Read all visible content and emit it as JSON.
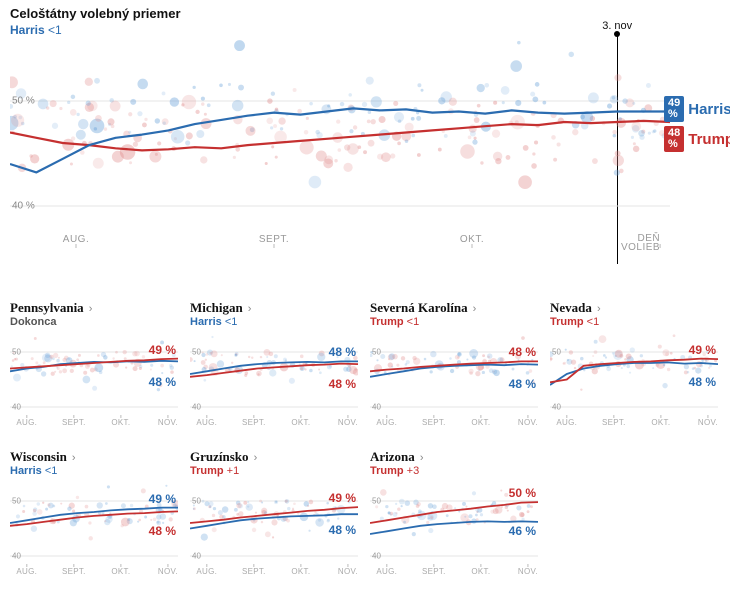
{
  "colors": {
    "harris": "#2b6cb0",
    "trump": "#c53030",
    "harris_dot": "#6aa2d8",
    "trump_dot": "#e08a8a",
    "grid": "#e5e5e5",
    "axis": "#bbbbbb",
    "text": "#111111",
    "muted": "#999999",
    "bg": "#ffffff"
  },
  "main": {
    "title": "Celoštátny volebný priemer",
    "leader": "Harris",
    "margin": "<1",
    "date_label": "3. nov",
    "x_ticks": [
      "AUG.",
      "SEPT.",
      "OKT.",
      "DEŇ VOLIEB"
    ],
    "x_tick_pos": [
      0.1,
      0.4,
      0.7,
      0.985
    ],
    "y_ticks": [
      40,
      50
    ],
    "y_domain": [
      36,
      56
    ],
    "rule_pos": 0.92,
    "end_harris": "49 %",
    "end_trump": "48 %",
    "harris_line": [
      [
        0.0,
        44.0
      ],
      [
        0.04,
        43.2
      ],
      [
        0.08,
        44.5
      ],
      [
        0.12,
        45.8
      ],
      [
        0.16,
        46.5
      ],
      [
        0.2,
        46.8
      ],
      [
        0.24,
        47.2
      ],
      [
        0.28,
        47.8
      ],
      [
        0.32,
        48.2
      ],
      [
        0.36,
        48.6
      ],
      [
        0.4,
        48.9
      ],
      [
        0.44,
        48.7
      ],
      [
        0.48,
        49.0
      ],
      [
        0.52,
        49.3
      ],
      [
        0.56,
        49.1
      ],
      [
        0.6,
        49.2
      ],
      [
        0.64,
        48.9
      ],
      [
        0.68,
        49.0
      ],
      [
        0.72,
        48.8
      ],
      [
        0.76,
        49.1
      ],
      [
        0.8,
        48.9
      ],
      [
        0.84,
        48.8
      ],
      [
        0.88,
        48.9
      ],
      [
        0.92,
        49.0
      ],
      [
        0.96,
        49.0
      ],
      [
        1.0,
        49.0
      ]
    ],
    "trump_line": [
      [
        0.0,
        47.0
      ],
      [
        0.04,
        46.5
      ],
      [
        0.08,
        46.0
      ],
      [
        0.12,
        45.8
      ],
      [
        0.16,
        45.5
      ],
      [
        0.2,
        45.3
      ],
      [
        0.24,
        45.4
      ],
      [
        0.28,
        45.6
      ],
      [
        0.32,
        45.5
      ],
      [
        0.36,
        45.8
      ],
      [
        0.4,
        46.0
      ],
      [
        0.44,
        46.2
      ],
      [
        0.48,
        46.4
      ],
      [
        0.52,
        46.6
      ],
      [
        0.56,
        46.8
      ],
      [
        0.6,
        47.0
      ],
      [
        0.64,
        47.2
      ],
      [
        0.68,
        47.4
      ],
      [
        0.72,
        47.6
      ],
      [
        0.76,
        47.8
      ],
      [
        0.8,
        47.7
      ],
      [
        0.84,
        48.0
      ],
      [
        0.88,
        47.9
      ],
      [
        0.92,
        48.0
      ],
      [
        0.96,
        48.1
      ],
      [
        1.0,
        48.0
      ]
    ],
    "n_dots": 260,
    "dot_seed": 7
  },
  "panels_common": {
    "x_ticks": [
      "AUG.",
      "SEPT.",
      "OKT.",
      "NOV."
    ],
    "x_tick_pos": [
      0.1,
      0.38,
      0.66,
      0.94
    ],
    "y_ticks": [
      40,
      50
    ],
    "y_domain": [
      38,
      54
    ]
  },
  "panels": [
    {
      "title": "Pennsylvania",
      "leader": "Dokonca",
      "leader_color": "#555555",
      "margin": "",
      "end_top": "49 %",
      "end_top_color": "trump",
      "end_bot": "48 %",
      "end_bot_color": "harris",
      "harris_line": [
        [
          0,
          46.5
        ],
        [
          0.1,
          47.0
        ],
        [
          0.2,
          47.3
        ],
        [
          0.3,
          47.8
        ],
        [
          0.4,
          48.0
        ],
        [
          0.5,
          48.2
        ],
        [
          0.6,
          48.1
        ],
        [
          0.7,
          48.3
        ],
        [
          0.8,
          48.2
        ],
        [
          0.9,
          48.4
        ],
        [
          1,
          48.3
        ]
      ],
      "trump_line": [
        [
          0,
          47.0
        ],
        [
          0.1,
          47.2
        ],
        [
          0.2,
          47.4
        ],
        [
          0.3,
          47.6
        ],
        [
          0.4,
          47.8
        ],
        [
          0.5,
          48.0
        ],
        [
          0.6,
          48.2
        ],
        [
          0.7,
          48.4
        ],
        [
          0.8,
          48.5
        ],
        [
          0.9,
          48.7
        ],
        [
          1,
          48.8
        ]
      ]
    },
    {
      "title": "Michigan",
      "leader": "Harris",
      "leader_color": "harris",
      "margin": "<1",
      "end_top": "48 %",
      "end_top_color": "harris",
      "end_bot": "48 %",
      "end_bot_color": "trump",
      "harris_line": [
        [
          0,
          46.0
        ],
        [
          0.1,
          46.5
        ],
        [
          0.2,
          47.0
        ],
        [
          0.3,
          47.5
        ],
        [
          0.4,
          47.8
        ],
        [
          0.5,
          48.0
        ],
        [
          0.6,
          48.1
        ],
        [
          0.7,
          48.2
        ],
        [
          0.8,
          48.1
        ],
        [
          0.9,
          48.3
        ],
        [
          1,
          48.3
        ]
      ],
      "trump_line": [
        [
          0,
          45.5
        ],
        [
          0.1,
          45.8
        ],
        [
          0.2,
          46.2
        ],
        [
          0.3,
          46.6
        ],
        [
          0.4,
          47.0
        ],
        [
          0.5,
          47.2
        ],
        [
          0.6,
          47.4
        ],
        [
          0.7,
          47.6
        ],
        [
          0.8,
          47.7
        ],
        [
          0.9,
          47.9
        ],
        [
          1,
          47.8
        ]
      ]
    },
    {
      "title": "Severná Karolína",
      "leader": "Trump",
      "leader_color": "trump",
      "margin": "<1",
      "end_top": "48 %",
      "end_top_color": "trump",
      "end_bot": "48 %",
      "end_bot_color": "harris",
      "harris_line": [
        [
          0,
          45.5
        ],
        [
          0.1,
          46.0
        ],
        [
          0.2,
          46.5
        ],
        [
          0.3,
          47.0
        ],
        [
          0.4,
          47.3
        ],
        [
          0.5,
          47.5
        ],
        [
          0.6,
          47.6
        ],
        [
          0.7,
          47.7
        ],
        [
          0.8,
          47.6
        ],
        [
          0.9,
          47.8
        ],
        [
          1,
          47.7
        ]
      ],
      "trump_line": [
        [
          0,
          46.5
        ],
        [
          0.1,
          46.8
        ],
        [
          0.2,
          47.0
        ],
        [
          0.3,
          47.3
        ],
        [
          0.4,
          47.5
        ],
        [
          0.5,
          47.7
        ],
        [
          0.6,
          47.9
        ],
        [
          0.7,
          48.0
        ],
        [
          0.8,
          48.1
        ],
        [
          0.9,
          48.3
        ],
        [
          1,
          48.3
        ]
      ]
    },
    {
      "title": "Nevada",
      "leader": "Trump",
      "leader_color": "trump",
      "margin": "<1",
      "end_top": "49 %",
      "end_top_color": "trump",
      "end_bot": "48 %",
      "end_bot_color": "harris",
      "harris_line": [
        [
          0,
          44.0
        ],
        [
          0.1,
          46.0
        ],
        [
          0.2,
          47.0
        ],
        [
          0.3,
          47.5
        ],
        [
          0.4,
          47.8
        ],
        [
          0.5,
          48.0
        ],
        [
          0.6,
          48.0
        ],
        [
          0.7,
          48.1
        ],
        [
          0.8,
          47.9
        ],
        [
          0.9,
          48.0
        ],
        [
          1,
          47.8
        ]
      ],
      "trump_line": [
        [
          0,
          44.5
        ],
        [
          0.1,
          45.0
        ],
        [
          0.2,
          47.5
        ],
        [
          0.3,
          47.8
        ],
        [
          0.4,
          48.0
        ],
        [
          0.5,
          48.2
        ],
        [
          0.6,
          48.3
        ],
        [
          0.7,
          48.5
        ],
        [
          0.8,
          48.6
        ],
        [
          0.9,
          48.8
        ],
        [
          1,
          48.7
        ]
      ]
    },
    {
      "title": "Wisconsin",
      "leader": "Harris",
      "leader_color": "harris",
      "margin": "<1",
      "end_top": "49 %",
      "end_top_color": "harris",
      "end_bot": "48 %",
      "end_bot_color": "trump",
      "harris_line": [
        [
          0,
          46.0
        ],
        [
          0.1,
          46.5
        ],
        [
          0.2,
          47.0
        ],
        [
          0.3,
          47.5
        ],
        [
          0.4,
          47.8
        ],
        [
          0.5,
          48.0
        ],
        [
          0.6,
          48.3
        ],
        [
          0.7,
          48.5
        ],
        [
          0.8,
          48.6
        ],
        [
          0.9,
          48.8
        ],
        [
          1,
          48.8
        ]
      ],
      "trump_line": [
        [
          0,
          45.5
        ],
        [
          0.1,
          45.8
        ],
        [
          0.2,
          46.2
        ],
        [
          0.3,
          46.6
        ],
        [
          0.4,
          47.0
        ],
        [
          0.5,
          47.3
        ],
        [
          0.6,
          47.5
        ],
        [
          0.7,
          47.7
        ],
        [
          0.8,
          47.8
        ],
        [
          0.9,
          48.0
        ],
        [
          1,
          48.1
        ]
      ]
    },
    {
      "title": "Gruzínsko",
      "leader": "Trump",
      "leader_color": "trump",
      "margin": "+1",
      "end_top": "49 %",
      "end_top_color": "trump",
      "end_bot": "48 %",
      "end_bot_color": "harris",
      "harris_line": [
        [
          0,
          45.0
        ],
        [
          0.1,
          45.5
        ],
        [
          0.2,
          46.0
        ],
        [
          0.3,
          46.5
        ],
        [
          0.4,
          46.8
        ],
        [
          0.5,
          47.0
        ],
        [
          0.6,
          47.2
        ],
        [
          0.7,
          47.3
        ],
        [
          0.8,
          47.4
        ],
        [
          0.9,
          47.6
        ],
        [
          1,
          47.6
        ]
      ],
      "trump_line": [
        [
          0,
          46.0
        ],
        [
          0.1,
          46.3
        ],
        [
          0.2,
          46.6
        ],
        [
          0.3,
          47.0
        ],
        [
          0.4,
          47.3
        ],
        [
          0.5,
          47.6
        ],
        [
          0.6,
          47.9
        ],
        [
          0.7,
          48.2
        ],
        [
          0.8,
          48.4
        ],
        [
          0.9,
          48.7
        ],
        [
          1,
          48.9
        ]
      ]
    },
    {
      "title": "Arizona",
      "leader": "Trump",
      "leader_color": "trump",
      "margin": "+3",
      "end_top": "50 %",
      "end_top_color": "trump",
      "end_bot": "46 %",
      "end_bot_color": "harris",
      "harris_line": [
        [
          0,
          44.0
        ],
        [
          0.1,
          44.5
        ],
        [
          0.2,
          45.0
        ],
        [
          0.3,
          45.5
        ],
        [
          0.4,
          45.8
        ],
        [
          0.5,
          46.0
        ],
        [
          0.6,
          46.2
        ],
        [
          0.7,
          46.3
        ],
        [
          0.8,
          46.2
        ],
        [
          0.9,
          46.3
        ],
        [
          1,
          46.2
        ]
      ],
      "trump_line": [
        [
          0,
          46.0
        ],
        [
          0.1,
          46.5
        ],
        [
          0.2,
          47.0
        ],
        [
          0.3,
          47.5
        ],
        [
          0.4,
          48.0
        ],
        [
          0.5,
          48.3
        ],
        [
          0.6,
          48.6
        ],
        [
          0.7,
          49.0
        ],
        [
          0.8,
          49.3
        ],
        [
          0.9,
          49.7
        ],
        [
          1,
          49.8
        ]
      ]
    }
  ]
}
